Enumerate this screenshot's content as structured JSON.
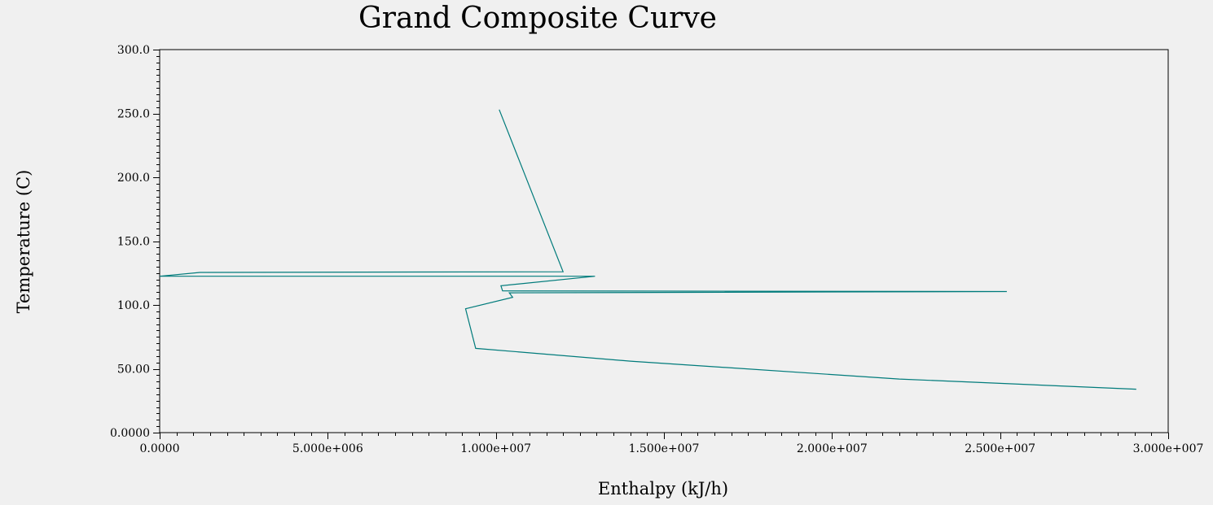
{
  "chart_data": {
    "type": "line",
    "title": "Grand Composite Curve",
    "xlabel": "Enthalpy (kJ/h)",
    "ylabel": "Temperature (C)",
    "xlim": [
      0,
      30000000
    ],
    "ylim": [
      0,
      300
    ],
    "grid": false,
    "x_tick_labels": [
      "0.0000",
      "5.000e+006",
      "1.000e+007",
      "1.500e+007",
      "2.000e+007",
      "2.500e+007",
      "3.000e+007"
    ],
    "x_tick_values": [
      0,
      5000000,
      10000000,
      15000000,
      20000000,
      25000000,
      30000000
    ],
    "y_tick_labels": [
      "0.0000",
      "50.00",
      "100.0",
      "150.0",
      "200.0",
      "250.0",
      "300.0"
    ],
    "y_tick_values": [
      0,
      50,
      100,
      150,
      200,
      250,
      300
    ],
    "line_color": "#007b7b",
    "series": [
      {
        "points": [
          [
            10100000,
            253
          ],
          [
            12000000,
            126
          ],
          [
            1200000,
            125.5
          ],
          [
            0,
            122.5
          ],
          [
            12950000,
            122.5
          ],
          [
            10150000,
            115
          ],
          [
            10200000,
            111
          ],
          [
            25200000,
            110.5
          ],
          [
            10400000,
            109.5
          ],
          [
            10500000,
            106
          ],
          [
            9100000,
            97
          ],
          [
            9400000,
            66
          ],
          [
            14000000,
            56
          ],
          [
            22000000,
            42
          ],
          [
            29050000,
            34
          ]
        ]
      }
    ]
  }
}
